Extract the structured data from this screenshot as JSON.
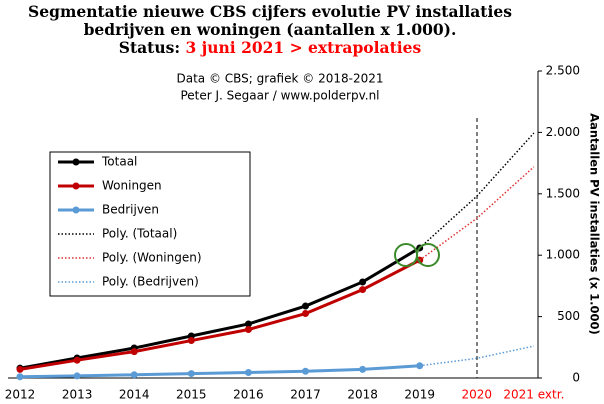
{
  "chart_data": {
    "type": "line",
    "title": [
      "Segmentatie nieuwe CBS cijfers evolutie PV installaties",
      "bedrijven en woningen (aantallen x 1.000)."
    ],
    "status_label": "Status:",
    "status_text": "3 juni 2021 > extrapolaties",
    "subtitle": [
      "Data © CBS; grafiek © 2018-2021",
      "Peter J. Segaar / www.polderpv.nl"
    ],
    "y_axis_label": "Aantallen PV installaties (x 1.000)",
    "categories": [
      "2012",
      "2013",
      "2014",
      "2015",
      "2016",
      "2017",
      "2018",
      "2019",
      "2020",
      "2021 extr."
    ],
    "category_colors": [
      "#000000",
      "#000000",
      "#000000",
      "#000000",
      "#000000",
      "#000000",
      "#000000",
      "#000000",
      "#ff0000",
      "#ff0000"
    ],
    "ylim": [
      0,
      2500
    ],
    "yticks": [
      0,
      {
        "value": 500,
        "label": "500"
      },
      {
        "value": 1000,
        "label": "1.000"
      },
      {
        "value": 1500,
        "label": "1.500"
      },
      {
        "value": 2000,
        "label": "2.000"
      },
      {
        "value": 2500,
        "label": "2.500"
      }
    ],
    "series": [
      {
        "name": "Totaal",
        "color": "#000000",
        "style": "solid",
        "values": [
          80,
          163,
          244,
          342,
          440,
          586,
          782,
          1059,
          null,
          null
        ]
      },
      {
        "name": "Woningen",
        "color": "#c00000",
        "style": "solid",
        "values": [
          70,
          145,
          215,
          305,
          395,
          525,
          720,
          960,
          null,
          null
        ]
      },
      {
        "name": "Bedrijven",
        "color": "#5b9bd5",
        "style": "solid",
        "values": [
          10,
          17,
          26,
          36,
          45,
          55,
          70,
          100,
          null,
          null
        ]
      },
      {
        "name": "Poly. (Totaal)",
        "color": "#000000",
        "style": "dotted",
        "values": [
          null,
          null,
          null,
          null,
          null,
          null,
          782,
          1059,
          1480,
          1995
        ]
      },
      {
        "name": "Poly. (Woningen)",
        "color": "#e03030",
        "style": "dotted",
        "values": [
          null,
          null,
          null,
          null,
          null,
          null,
          null,
          960,
          1300,
          1720
        ]
      },
      {
        "name": "Poly. (Bedrijven)",
        "color": "#5b9bd5",
        "style": "dotted",
        "values": [
          null,
          null,
          null,
          null,
          null,
          null,
          null,
          100,
          160,
          260
        ]
      }
    ]
  }
}
